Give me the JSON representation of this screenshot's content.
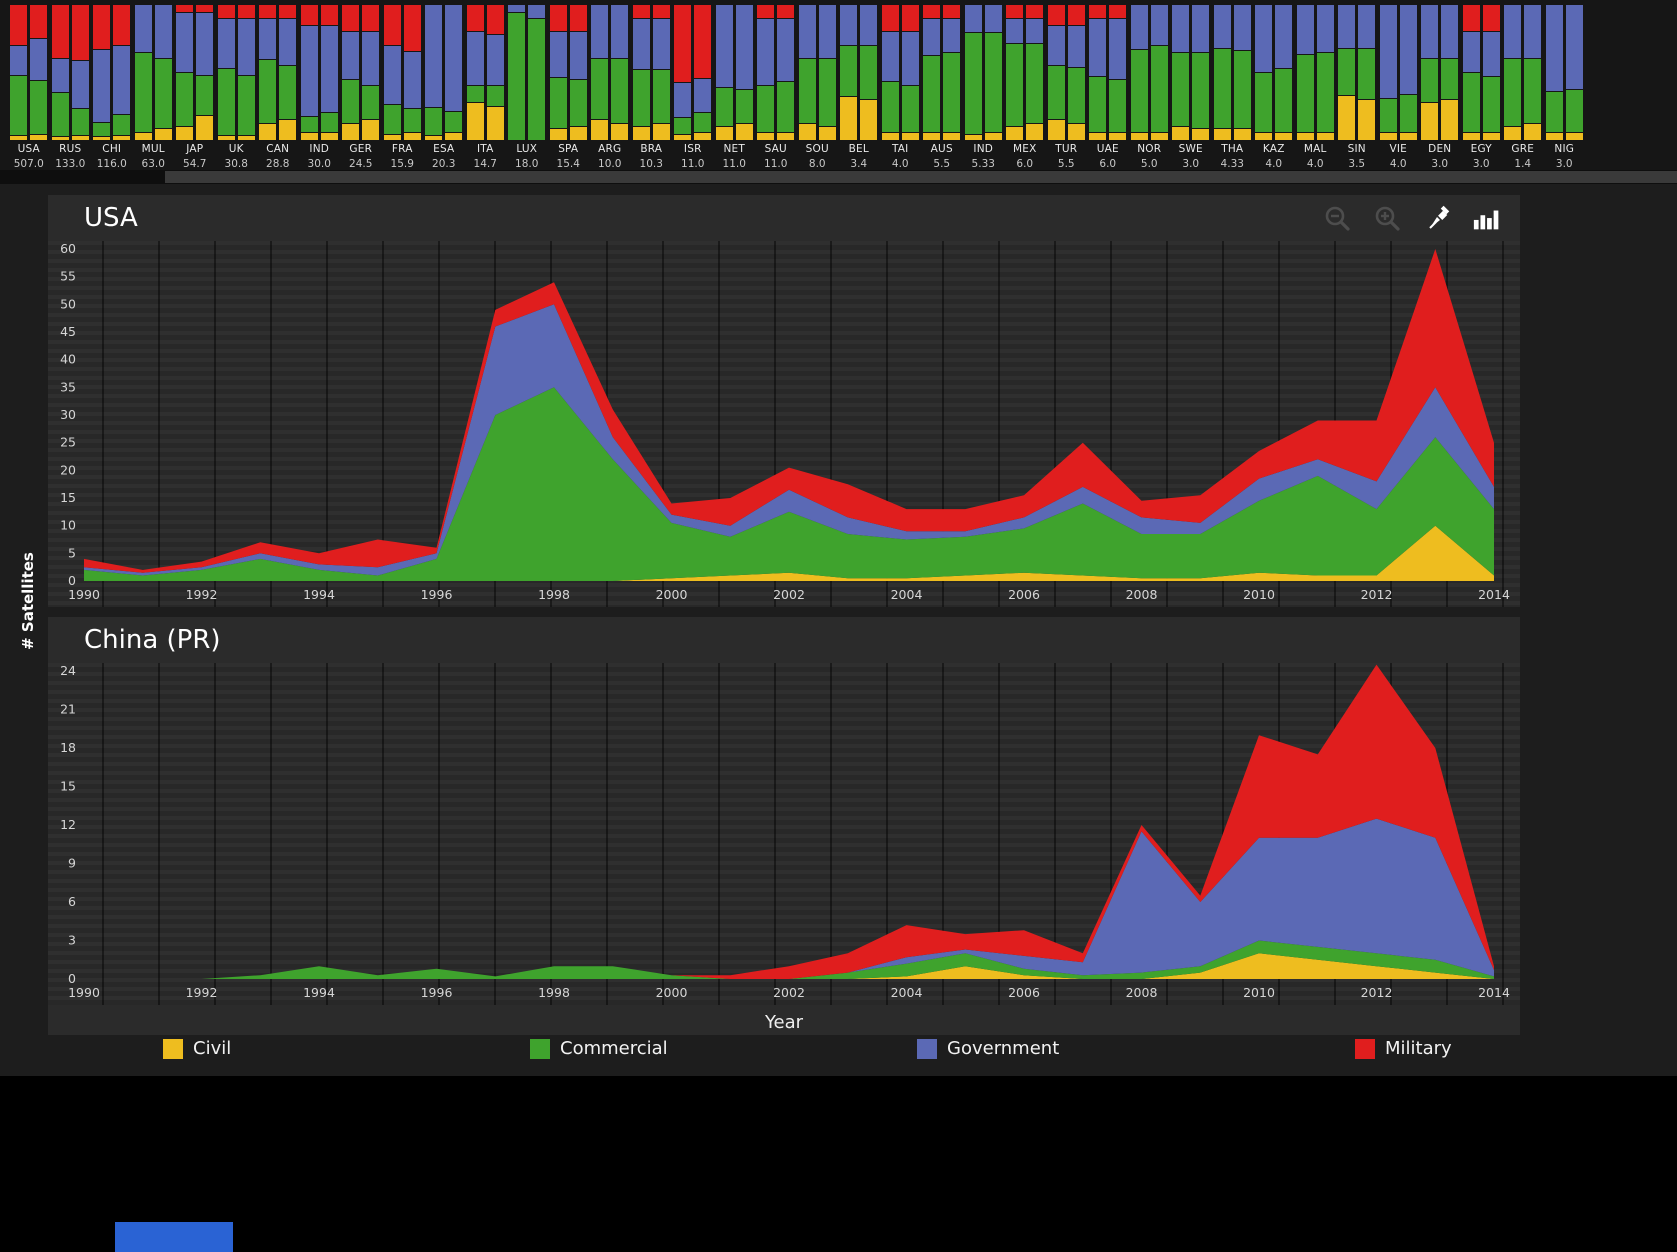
{
  "labels": {
    "y_axis": "# Satellites",
    "x_axis": "Year"
  },
  "colors": {
    "civil": "#eebd1f",
    "commercial": "#3fa32d",
    "government": "#5b69b5",
    "military": "#e01e1e",
    "panel_bg": "#2b2b2b",
    "strip_bg": "#161616",
    "blue_box": "#2a63d4"
  },
  "legend": [
    {
      "label": "Civil",
      "color_key": "civil"
    },
    {
      "label": "Commercial",
      "color_key": "commercial"
    },
    {
      "label": "Government",
      "color_key": "government"
    },
    {
      "label": "Military",
      "color_key": "military"
    }
  ],
  "toolbar": {
    "icons": [
      "zoom-out",
      "zoom-in",
      "pin",
      "bar-chart"
    ]
  },
  "chart_data": [
    {
      "type": "bar",
      "title": "Satellites per country (stacked share of Civil / Commercial / Government / Military)",
      "stack_order": [
        "civil",
        "commercial",
        "government",
        "military"
      ],
      "items": [
        {
          "code": "USA",
          "value": "507.0",
          "bars": [
            [
              3,
              45,
              22,
              30
            ],
            [
              4,
              40,
              31,
              25
            ]
          ]
        },
        {
          "code": "RUS",
          "value": "133.0",
          "bars": [
            [
              2,
              33,
              25,
              40
            ],
            [
              3,
              20,
              35,
              42
            ]
          ]
        },
        {
          "code": "CHI",
          "value": "116.0",
          "bars": [
            [
              2,
              10,
              55,
              33
            ],
            [
              3,
              15,
              52,
              30
            ]
          ]
        },
        {
          "code": "MUL",
          "value": "63.0",
          "bars": [
            [
              5,
              60,
              35,
              0
            ],
            [
              8,
              52,
              40,
              0
            ]
          ]
        },
        {
          "code": "JAP",
          "value": "54.7",
          "bars": [
            [
              10,
              40,
              45,
              5
            ],
            [
              18,
              30,
              47,
              5
            ]
          ]
        },
        {
          "code": "UK",
          "value": "30.8",
          "bars": [
            [
              3,
              50,
              37,
              10
            ],
            [
              3,
              45,
              42,
              10
            ]
          ]
        },
        {
          "code": "CAN",
          "value": "28.8",
          "bars": [
            [
              12,
              48,
              30,
              10
            ],
            [
              15,
              40,
              35,
              10
            ]
          ]
        },
        {
          "code": "IND",
          "value": "30.0",
          "bars": [
            [
              5,
              12,
              68,
              15
            ],
            [
              5,
              15,
              65,
              15
            ]
          ]
        },
        {
          "code": "GER",
          "value": "24.5",
          "bars": [
            [
              12,
              33,
              35,
              20
            ],
            [
              15,
              25,
              40,
              20
            ]
          ]
        },
        {
          "code": "FRA",
          "value": "15.9",
          "bars": [
            [
              4,
              22,
              44,
              30
            ],
            [
              5,
              18,
              42,
              35
            ]
          ]
        },
        {
          "code": "ESA",
          "value": "20.3",
          "bars": [
            [
              3,
              20,
              77,
              0
            ],
            [
              5,
              15,
              80,
              0
            ]
          ]
        },
        {
          "code": "ITA",
          "value": "14.7",
          "bars": [
            [
              28,
              12,
              40,
              20
            ],
            [
              25,
              15,
              38,
              22
            ]
          ]
        },
        {
          "code": "LUX",
          "value": "18.0",
          "bars": [
            [
              0,
              95,
              5,
              0
            ],
            [
              0,
              90,
              10,
              0
            ]
          ]
        },
        {
          "code": "SPA",
          "value": "15.4",
          "bars": [
            [
              8,
              38,
              34,
              20
            ],
            [
              10,
              35,
              35,
              20
            ]
          ]
        },
        {
          "code": "ARG",
          "value": "10.0",
          "bars": [
            [
              15,
              45,
              40,
              0
            ],
            [
              12,
              48,
              40,
              0
            ]
          ]
        },
        {
          "code": "BRA",
          "value": "10.3",
          "bars": [
            [
              10,
              42,
              38,
              10
            ],
            [
              12,
              40,
              38,
              10
            ]
          ]
        },
        {
          "code": "ISR",
          "value": "11.0",
          "bars": [
            [
              4,
              12,
              26,
              58
            ],
            [
              5,
              15,
              25,
              55
            ]
          ]
        },
        {
          "code": "NET",
          "value": "11.0",
          "bars": [
            [
              10,
              28,
              62,
              0
            ],
            [
              12,
              25,
              63,
              0
            ]
          ]
        },
        {
          "code": "SAU",
          "value": "11.0",
          "bars": [
            [
              5,
              35,
              50,
              10
            ],
            [
              5,
              38,
              47,
              10
            ]
          ]
        },
        {
          "code": "SOU",
          "value": "8.0",
          "bars": [
            [
              12,
              48,
              40,
              0
            ],
            [
              10,
              50,
              40,
              0
            ]
          ]
        },
        {
          "code": "BEL",
          "value": "3.4",
          "bars": [
            [
              32,
              38,
              30,
              0
            ],
            [
              30,
              40,
              30,
              0
            ]
          ]
        },
        {
          "code": "TAI",
          "value": "4.0",
          "bars": [
            [
              5,
              38,
              37,
              20
            ],
            [
              5,
              35,
              40,
              20
            ]
          ]
        },
        {
          "code": "AUS",
          "value": "5.5",
          "bars": [
            [
              5,
              58,
              27,
              10
            ],
            [
              5,
              60,
              25,
              10
            ]
          ]
        },
        {
          "code": "IND",
          "value": "5.33",
          "bars": [
            [
              4,
              76,
              20,
              0
            ],
            [
              5,
              75,
              20,
              0
            ]
          ]
        },
        {
          "code": "MEX",
          "value": "6.0",
          "bars": [
            [
              10,
              62,
              18,
              10
            ],
            [
              12,
              60,
              18,
              10
            ]
          ]
        },
        {
          "code": "TUR",
          "value": "5.5",
          "bars": [
            [
              15,
              40,
              30,
              15
            ],
            [
              12,
              42,
              31,
              15
            ]
          ]
        },
        {
          "code": "UAE",
          "value": "6.0",
          "bars": [
            [
              5,
              42,
              43,
              10
            ],
            [
              5,
              40,
              45,
              10
            ]
          ]
        },
        {
          "code": "NOR",
          "value": "5.0",
          "bars": [
            [
              5,
              62,
              33,
              0
            ],
            [
              5,
              65,
              30,
              0
            ]
          ]
        },
        {
          "code": "SWE",
          "value": "3.0",
          "bars": [
            [
              10,
              55,
              35,
              0
            ],
            [
              8,
              57,
              35,
              0
            ]
          ]
        },
        {
          "code": "THA",
          "value": "4.33",
          "bars": [
            [
              8,
              60,
              32,
              0
            ],
            [
              8,
              58,
              34,
              0
            ]
          ]
        },
        {
          "code": "KAZ",
          "value": "4.0",
          "bars": [
            [
              5,
              45,
              50,
              0
            ],
            [
              5,
              48,
              47,
              0
            ]
          ]
        },
        {
          "code": "MAL",
          "value": "4.0",
          "bars": [
            [
              5,
              58,
              37,
              0
            ],
            [
              5,
              60,
              35,
              0
            ]
          ]
        },
        {
          "code": "SIN",
          "value": "3.5",
          "bars": [
            [
              33,
              35,
              32,
              0
            ],
            [
              30,
              38,
              32,
              0
            ]
          ]
        },
        {
          "code": "VIE",
          "value": "4.0",
          "bars": [
            [
              5,
              25,
              70,
              0
            ],
            [
              5,
              28,
              67,
              0
            ]
          ]
        },
        {
          "code": "DEN",
          "value": "3.0",
          "bars": [
            [
              28,
              32,
              40,
              0
            ],
            [
              30,
              30,
              40,
              0
            ]
          ]
        },
        {
          "code": "EGY",
          "value": "3.0",
          "bars": [
            [
              5,
              45,
              30,
              20
            ],
            [
              5,
              42,
              33,
              20
            ]
          ]
        },
        {
          "code": "GRE",
          "value": "1.4",
          "bars": [
            [
              10,
              50,
              40,
              0
            ],
            [
              12,
              48,
              40,
              0
            ]
          ]
        },
        {
          "code": "NIG",
          "value": "3.0",
          "bars": [
            [
              5,
              30,
              65,
              0
            ],
            [
              5,
              32,
              63,
              0
            ]
          ]
        }
      ]
    },
    {
      "type": "area",
      "title": "USA",
      "x": [
        1990,
        1991,
        1992,
        1993,
        1994,
        1995,
        1996,
        1997,
        1998,
        1999,
        2000,
        2001,
        2002,
        2003,
        2004,
        2005,
        2006,
        2007,
        2008,
        2009,
        2010,
        2011,
        2012,
        2013,
        2014
      ],
      "x_ticks": [
        1990,
        1992,
        1994,
        1996,
        1998,
        2000,
        2002,
        2004,
        2006,
        2008,
        2010,
        2012,
        2014
      ],
      "ylim": [
        0,
        60
      ],
      "y_ticks": [
        0,
        5,
        10,
        15,
        20,
        25,
        30,
        35,
        40,
        45,
        50,
        55,
        60
      ],
      "series": [
        {
          "name": "Civil",
          "color": "#eebd1f",
          "values": [
            0,
            0,
            0,
            0,
            0,
            0,
            0,
            0,
            0,
            0,
            0.5,
            1,
            1.5,
            0.5,
            0.5,
            1,
            1.5,
            1,
            0.5,
            0.5,
            1.5,
            1,
            1,
            10,
            1
          ]
        },
        {
          "name": "Commercial",
          "color": "#3fa32d",
          "values": [
            2,
            1,
            2,
            4,
            2,
            1,
            4,
            30,
            35,
            22,
            10,
            7,
            11,
            8,
            7,
            7,
            8,
            13,
            8,
            8,
            13,
            18,
            12,
            16,
            12
          ]
        },
        {
          "name": "Government",
          "color": "#5b69b5",
          "values": [
            0.5,
            0.5,
            0.5,
            1,
            1,
            1.5,
            1,
            16,
            15,
            4,
            1.5,
            2,
            4,
            3,
            1.5,
            1,
            2,
            3,
            3,
            2,
            4,
            3,
            5,
            9,
            4
          ]
        },
        {
          "name": "Military",
          "color": "#e01e1e",
          "values": [
            1.5,
            0.5,
            1,
            2,
            2,
            5,
            1,
            3,
            4,
            5,
            2,
            5,
            4,
            6,
            4,
            4,
            4,
            8,
            3,
            5,
            5,
            7,
            11,
            25,
            8
          ]
        }
      ]
    },
    {
      "type": "area",
      "title": "China (PR)",
      "x": [
        1990,
        1991,
        1992,
        1993,
        1994,
        1995,
        1996,
        1997,
        1998,
        1999,
        2000,
        2001,
        2002,
        2003,
        2004,
        2005,
        2006,
        2007,
        2008,
        2009,
        2010,
        2011,
        2012,
        2013,
        2014
      ],
      "x_ticks": [
        1990,
        1992,
        1994,
        1996,
        1998,
        2000,
        2002,
        2004,
        2006,
        2008,
        2010,
        2012,
        2014
      ],
      "ylim": [
        0,
        24
      ],
      "y_ticks": [
        0,
        3,
        6,
        9,
        12,
        15,
        18,
        21,
        24
      ],
      "series": [
        {
          "name": "Civil",
          "color": "#eebd1f",
          "values": [
            0,
            0,
            0,
            0,
            0,
            0,
            0,
            0,
            0,
            0,
            0,
            0,
            0,
            0,
            0.2,
            1,
            0.3,
            0,
            0,
            0.5,
            2,
            1.5,
            1,
            0.5,
            0
          ]
        },
        {
          "name": "Commercial",
          "color": "#3fa32d",
          "values": [
            0,
            0,
            0,
            0.3,
            1,
            0.3,
            0.8,
            0.2,
            1,
            1,
            0.3,
            0,
            0,
            0.5,
            1,
            1,
            0.5,
            0.3,
            0.5,
            0.5,
            1,
            1,
            1,
            1,
            0.2
          ]
        },
        {
          "name": "Government",
          "color": "#5b69b5",
          "values": [
            0,
            0,
            0,
            0,
            0,
            0,
            0,
            0,
            0,
            0,
            0,
            0,
            0,
            0,
            0.5,
            0.3,
            1,
            1,
            11,
            5,
            8,
            8.5,
            10.5,
            9.5,
            0.5
          ]
        },
        {
          "name": "Military",
          "color": "#e01e1e",
          "values": [
            0,
            0,
            0,
            0,
            0,
            0,
            0,
            0,
            0,
            0,
            0,
            0.3,
            1,
            1.5,
            2.5,
            1.2,
            2,
            0.7,
            0.5,
            0.5,
            8,
            6.5,
            12,
            7,
            0.3
          ]
        }
      ]
    }
  ]
}
